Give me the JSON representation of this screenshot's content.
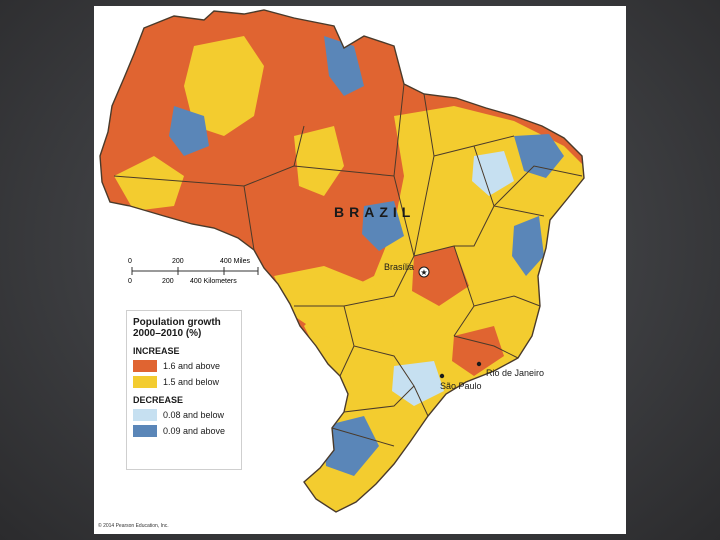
{
  "map": {
    "country_label": "BRAZIL",
    "cities": {
      "brasilia": "Brasília",
      "rio": "Rio de Janeiro",
      "sao_paulo": "São Paulo"
    },
    "scale_bar": {
      "miles_ticks": [
        "0",
        "200",
        "400 Miles"
      ],
      "km_ticks": [
        "0",
        "200",
        "400 Kilometers"
      ]
    },
    "copyright": "© 2014 Pearson Education, Inc."
  },
  "legend": {
    "title": "Population growth 2000–2010 (%)",
    "increase_heading": "INCREASE",
    "decrease_heading": "DECREASE",
    "items": [
      {
        "label": "1.6 and above",
        "color": "#e06431"
      },
      {
        "label": "1.5 and below",
        "color": "#f3cc2f"
      },
      {
        "label": "0.08 and below",
        "color": "#c6e0f1"
      },
      {
        "label": "0.09 and above",
        "color": "#5a86b8"
      }
    ]
  },
  "colors": {
    "increase_high": "#e06431",
    "increase_low": "#f3cc2f",
    "decrease_low": "#c6e0f1",
    "decrease_high": "#5a86b8",
    "border": "#4a3a2a"
  }
}
